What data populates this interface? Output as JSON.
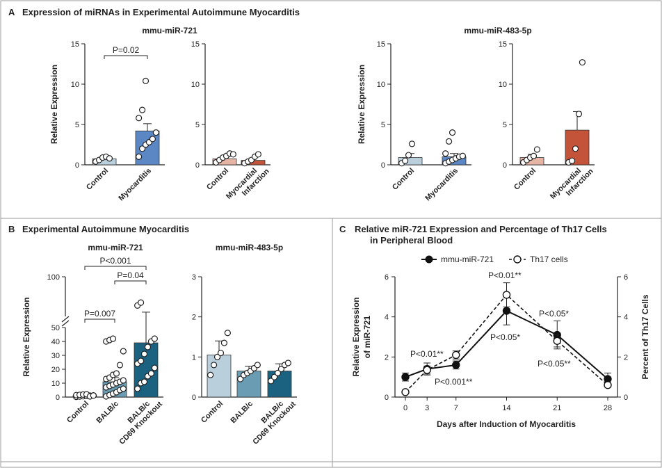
{
  "panelA": {
    "letter": "A",
    "title": "Expression of miRNAs in Experimental Autoimmune Myocarditis",
    "groups": [
      {
        "title": "mmu-miR-721"
      },
      {
        "title": "mmu-miR-483-5p"
      }
    ]
  },
  "panelB": {
    "letter": "B",
    "title": "Experimental Autoimmune Myocarditis"
  },
  "panelC": {
    "letter": "C",
    "title_line1": "Relative miR-721 Expression and Percentage of Th17 Cells",
    "title_line2": "in Peripheral Blood"
  },
  "chart_data": [
    {
      "id": "A1",
      "type": "bar",
      "panel": "A",
      "title": "mmu-miR-721",
      "ylabel": "Relative Expression",
      "ylim": [
        0,
        15
      ],
      "yticks": [
        0,
        5,
        10,
        15
      ],
      "categories": [
        "Control",
        "Myocarditis"
      ],
      "values": [
        0.75,
        4.2
      ],
      "errors": [
        0.2,
        0.9
      ],
      "colors": [
        "#b9cfdc",
        "#5b87c5"
      ],
      "points": [
        [
          0.4,
          0.6,
          0.9,
          1.0,
          0.8
        ],
        [
          1.0,
          2.0,
          2.5,
          2.8,
          3.2,
          4.0,
          5.8,
          6.8,
          10.4
        ]
      ],
      "brackets": [
        {
          "from": 0,
          "to": 1,
          "label": "P=0.02"
        }
      ]
    },
    {
      "id": "A2",
      "type": "bar",
      "panel": "A",
      "title": "",
      "ylabel": "",
      "ylim": [
        0,
        15
      ],
      "yticks": [
        0,
        5,
        10,
        15
      ],
      "categories": [
        "Control",
        "Myocardial Infarction"
      ],
      "values": [
        0.75,
        0.55
      ],
      "errors": [
        0.25,
        0.25
      ],
      "colors": [
        "#e7b5a5",
        "#c3543a"
      ],
      "points": [
        [
          0.3,
          0.6,
          0.9,
          1.1,
          1.4,
          1.3
        ],
        [
          0.2,
          0.4,
          0.6,
          1.0,
          1.3
        ]
      ],
      "brackets": []
    },
    {
      "id": "A3",
      "type": "bar",
      "panel": "A",
      "title": "mmu-miR-483-5p",
      "ylabel": "Relative Expression",
      "ylim": [
        0,
        15
      ],
      "yticks": [
        0,
        5,
        10,
        15
      ],
      "categories": [
        "Control",
        "Myocarditis"
      ],
      "values": [
        0.9,
        1.0
      ],
      "errors": [
        0.5,
        0.4
      ],
      "colors": [
        "#b9cfdc",
        "#5b87c5"
      ],
      "points": [
        [
          0.2,
          0.5,
          1.2,
          2.6
        ],
        [
          0.2,
          0.4,
          0.6,
          0.8,
          1.0,
          1.1,
          1.4,
          2.9,
          4.0
        ]
      ],
      "brackets": []
    },
    {
      "id": "A4",
      "type": "bar",
      "panel": "A",
      "title": "",
      "ylabel": "",
      "ylim": [
        0,
        15
      ],
      "yticks": [
        0,
        5,
        10,
        15
      ],
      "categories": [
        "Control",
        "Myocardial Infarction"
      ],
      "values": [
        0.9,
        4.3
      ],
      "errors": [
        0.4,
        2.3
      ],
      "colors": [
        "#e7b5a5",
        "#c3543a"
      ],
      "points": [
        [
          0.3,
          0.6,
          0.9,
          1.1,
          1.9
        ],
        [
          0.3,
          0.5,
          2.0,
          6.3,
          12.7
        ]
      ],
      "brackets": []
    },
    {
      "id": "B1",
      "type": "bar",
      "panel": "B",
      "title": "mmu-miR-721",
      "ylabel": "Relative Expression",
      "ylim": [
        0,
        100
      ],
      "axis_break": [
        50,
        100
      ],
      "yticks": [
        0,
        10,
        20,
        30,
        40,
        50,
        100
      ],
      "categories": [
        "Control",
        "BALB/c",
        "BALB/c CD69 Knockout"
      ],
      "values": [
        1.0,
        11.0,
        39.0
      ],
      "errors": [
        0.5,
        3.0,
        13.0
      ],
      "colors": [
        "#b9cfdc",
        "#6a9cb3",
        "#1b6180"
      ],
      "points": [
        [
          0.2,
          0.4,
          0.6,
          0.8,
          1.0,
          1.2,
          1.4,
          1.6,
          1.8,
          2.0,
          0.5,
          1.1
        ],
        [
          0.5,
          1.5,
          2.5,
          3.5,
          5.0,
          6.0,
          7.0,
          8.0,
          9.0,
          10.0,
          11.0,
          12.0,
          13.0,
          14.0,
          16.0,
          17.0,
          23.0,
          33.0,
          40.0,
          41.0,
          42.0
        ],
        [
          6.0,
          10.0,
          11.0,
          15.0,
          17.0,
          21.0,
          24.0,
          26.0,
          31.0,
          36.0,
          40.0,
          42.0,
          61.0,
          65.0
        ]
      ],
      "brackets": [
        {
          "from": 0,
          "to": 1,
          "label": "P=0.007"
        },
        {
          "from": 1,
          "to": 2,
          "label": "P=0.04"
        },
        {
          "from": 0,
          "to": 2,
          "label": "P<0.001"
        }
      ]
    },
    {
      "id": "B2",
      "type": "bar",
      "panel": "B",
      "title": "mmu-miR-483-5p",
      "ylabel": "",
      "ylim": [
        0,
        3
      ],
      "yticks": [
        0,
        1,
        2,
        3
      ],
      "categories": [
        "Control",
        "BALB/c",
        "BALB/c CD69 Knockout"
      ],
      "values": [
        1.05,
        0.65,
        0.65
      ],
      "errors": [
        0.35,
        0.12,
        0.18
      ],
      "colors": [
        "#b9cfdc",
        "#6a9cb3",
        "#1b6180"
      ],
      "points": [
        [
          0.55,
          0.8,
          1.0,
          1.1,
          1.35,
          1.6
        ],
        [
          0.45,
          0.55,
          0.6,
          0.65,
          0.72,
          0.8
        ],
        [
          0.4,
          0.5,
          0.6,
          0.7,
          0.8,
          0.85
        ]
      ],
      "brackets": []
    },
    {
      "id": "C",
      "type": "line",
      "panel": "C",
      "xlabel": "Days after Induction of Myocarditis",
      "ylabel": "Relative Expression of miR-721",
      "ylabel_line1": "Relative Expression",
      "ylabel_line2": "of miR-721",
      "y2label": "Percent of Th17 Cells",
      "x": [
        0,
        3,
        7,
        14,
        21,
        28
      ],
      "xticks": [
        0,
        3,
        7,
        14,
        21,
        28
      ],
      "ylim": [
        0,
        6
      ],
      "yticks": [
        0,
        2,
        4,
        6
      ],
      "y2lim": [
        0,
        6
      ],
      "y2ticks": [
        0,
        2,
        4,
        6
      ],
      "series": [
        {
          "name": "mmu-miR-721",
          "style": "solid",
          "marker": "filled",
          "values": [
            1.0,
            1.4,
            1.6,
            4.3,
            3.1,
            0.9
          ],
          "errors": [
            0.2,
            0.3,
            0.2,
            0.7,
            0.7,
            0.3
          ]
        },
        {
          "name": "Th17 cells",
          "style": "dashed",
          "marker": "open",
          "values": [
            0.25,
            1.35,
            2.1,
            5.1,
            2.8,
            0.6
          ],
          "errors": [
            0.05,
            0.2,
            0.2,
            0.6,
            0.3,
            0.1
          ]
        }
      ],
      "annotations": [
        {
          "label": "P<0.01**"
        },
        {
          "label": "P<0.001**"
        },
        {
          "label": "P<0.01**"
        },
        {
          "label": "P<0.05*"
        },
        {
          "label": "P<0.05*"
        },
        {
          "label": "P<0.05**"
        }
      ]
    }
  ]
}
